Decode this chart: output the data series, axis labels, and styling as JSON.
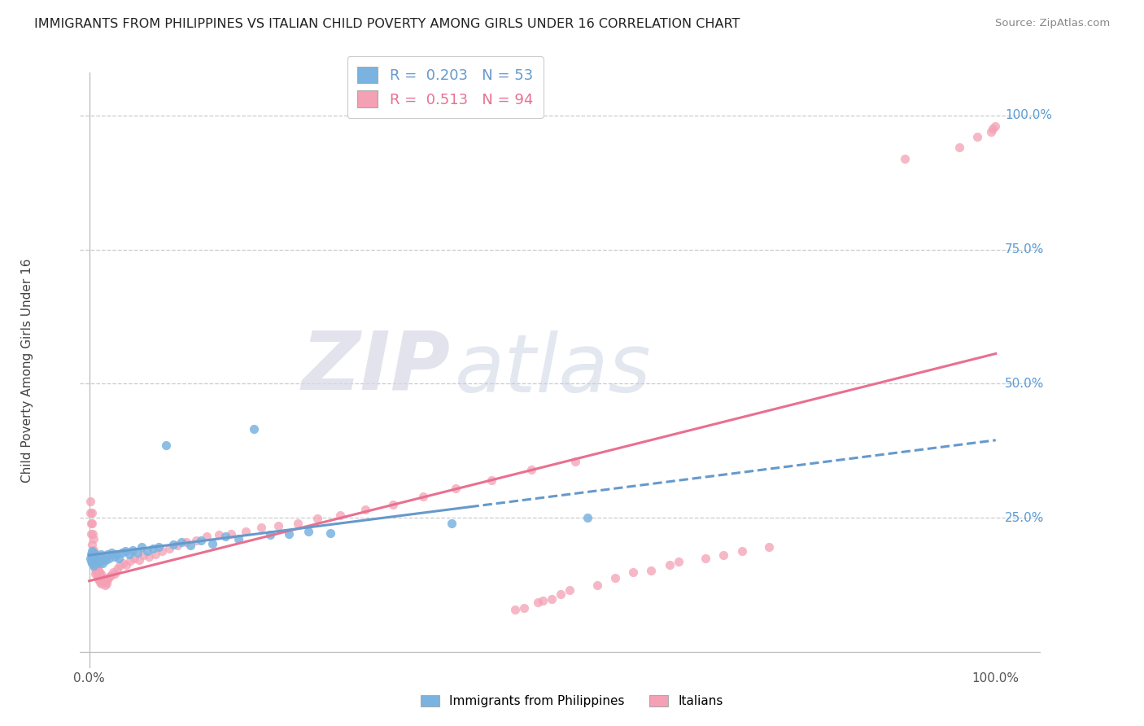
{
  "title": "IMMIGRANTS FROM PHILIPPINES VS ITALIAN CHILD POVERTY AMONG GIRLS UNDER 16 CORRELATION CHART",
  "source": "Source: ZipAtlas.com",
  "ylabel": "Child Poverty Among Girls Under 16",
  "legend_blue_r": "0.203",
  "legend_blue_n": "53",
  "legend_pink_r": "0.513",
  "legend_pink_n": "94",
  "legend_label_blue": "Immigrants from Philippines",
  "legend_label_pink": "Italians",
  "color_blue": "#7ab3e0",
  "color_pink": "#f4a0b5",
  "color_blue_line": "#6699cc",
  "color_pink_line": "#e87090",
  "watermark_zip": "ZIP",
  "watermark_atlas": "atlas",
  "ytick_labels": [
    "25.0%",
    "50.0%",
    "75.0%",
    "100.0%"
  ],
  "ytick_positions": [
    0.25,
    0.5,
    0.75,
    1.0
  ],
  "blue_x": [
    0.001,
    0.002,
    0.002,
    0.003,
    0.003,
    0.004,
    0.004,
    0.005,
    0.005,
    0.006,
    0.006,
    0.007,
    0.008,
    0.009,
    0.01,
    0.01,
    0.011,
    0.012,
    0.013,
    0.014,
    0.015,
    0.016,
    0.018,
    0.02,
    0.022,
    0.025,
    0.028,
    0.03,
    0.033,
    0.036,
    0.04,
    0.044,
    0.048,
    0.053,
    0.058,
    0.064,
    0.07,
    0.077,
    0.085,
    0.093,
    0.102,
    0.112,
    0.123,
    0.136,
    0.15,
    0.165,
    0.182,
    0.2,
    0.22,
    0.242,
    0.266,
    0.4,
    0.55
  ],
  "blue_y": [
    0.175,
    0.182,
    0.17,
    0.188,
    0.165,
    0.178,
    0.172,
    0.185,
    0.16,
    0.175,
    0.168,
    0.18,
    0.17,
    0.165,
    0.175,
    0.172,
    0.178,
    0.168,
    0.182,
    0.17,
    0.165,
    0.175,
    0.172,
    0.182,
    0.175,
    0.185,
    0.178,
    0.182,
    0.175,
    0.185,
    0.188,
    0.182,
    0.19,
    0.185,
    0.195,
    0.188,
    0.192,
    0.195,
    0.385,
    0.2,
    0.205,
    0.198,
    0.208,
    0.202,
    0.215,
    0.21,
    0.415,
    0.218,
    0.22,
    0.225,
    0.222,
    0.24,
    0.25
  ],
  "pink_x": [
    0.001,
    0.001,
    0.002,
    0.002,
    0.003,
    0.003,
    0.003,
    0.004,
    0.004,
    0.005,
    0.005,
    0.005,
    0.006,
    0.006,
    0.007,
    0.007,
    0.007,
    0.008,
    0.008,
    0.009,
    0.009,
    0.01,
    0.01,
    0.011,
    0.011,
    0.012,
    0.012,
    0.013,
    0.013,
    0.014,
    0.015,
    0.016,
    0.017,
    0.018,
    0.019,
    0.02,
    0.022,
    0.024,
    0.026,
    0.028,
    0.031,
    0.034,
    0.037,
    0.041,
    0.045,
    0.05,
    0.055,
    0.06,
    0.066,
    0.073,
    0.08,
    0.088,
    0.097,
    0.107,
    0.118,
    0.13,
    0.143,
    0.157,
    0.173,
    0.19,
    0.209,
    0.23,
    0.252,
    0.277,
    0.305,
    0.335,
    0.368,
    0.404,
    0.444,
    0.488,
    0.536,
    0.5,
    0.48,
    0.52,
    0.47,
    0.495,
    0.53,
    0.51,
    0.6,
    0.56,
    0.58,
    0.64,
    0.62,
    0.65,
    0.68,
    0.7,
    0.72,
    0.75,
    0.9,
    0.96,
    0.98,
    0.995,
    0.997,
    0.999
  ],
  "pink_y": [
    0.28,
    0.26,
    0.24,
    0.22,
    0.26,
    0.2,
    0.24,
    0.22,
    0.18,
    0.21,
    0.19,
    0.17,
    0.185,
    0.16,
    0.175,
    0.155,
    0.145,
    0.165,
    0.148,
    0.158,
    0.14,
    0.152,
    0.135,
    0.148,
    0.138,
    0.142,
    0.13,
    0.145,
    0.128,
    0.138,
    0.132,
    0.138,
    0.125,
    0.132,
    0.128,
    0.135,
    0.14,
    0.142,
    0.148,
    0.145,
    0.155,
    0.16,
    0.165,
    0.162,
    0.17,
    0.175,
    0.172,
    0.18,
    0.178,
    0.182,
    0.188,
    0.192,
    0.198,
    0.205,
    0.208,
    0.215,
    0.218,
    0.22,
    0.225,
    0.232,
    0.235,
    0.24,
    0.248,
    0.255,
    0.265,
    0.275,
    0.29,
    0.305,
    0.32,
    0.34,
    0.355,
    0.095,
    0.082,
    0.108,
    0.078,
    0.092,
    0.115,
    0.098,
    0.148,
    0.125,
    0.138,
    0.162,
    0.152,
    0.168,
    0.175,
    0.18,
    0.188,
    0.195,
    0.92,
    0.94,
    0.96,
    0.97,
    0.975,
    0.98
  ]
}
